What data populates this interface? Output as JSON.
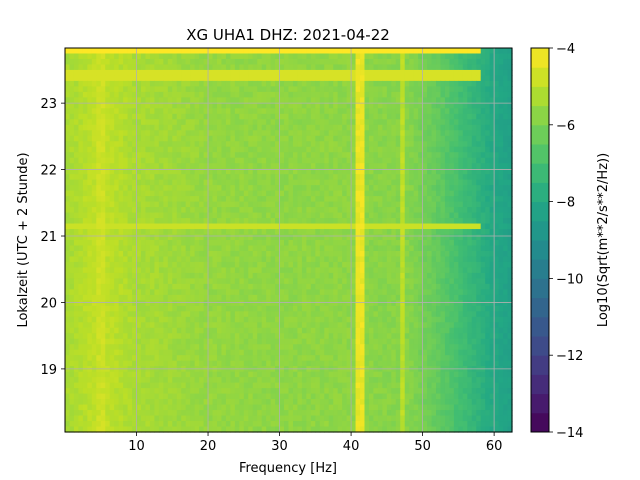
{
  "chart_data": {
    "type": "heatmap",
    "title": "XG UHA1  DHZ: 2021-04-22",
    "xlabel": "Frequency [Hz]",
    "ylabel": "Lokalzeit (UTC + 2 Stunde)",
    "xlim": [
      0,
      62.5
    ],
    "ylim": [
      23.83,
      18.05
    ],
    "x_ticks": [
      10,
      20,
      30,
      40,
      50,
      60
    ],
    "y_ticks": [
      19,
      20,
      21,
      22,
      23
    ],
    "x_ticklabels": [
      "10",
      "20",
      "30",
      "40",
      "50",
      "60"
    ],
    "y_ticklabels": [
      "19",
      "20",
      "21",
      "22",
      "23"
    ],
    "grid": true,
    "colormap": "viridis",
    "colorbar": {
      "label": "Log10(Sqrt(m**2/s**2/Hz))",
      "range": [
        -14,
        -4
      ],
      "ticks": [
        -4,
        -6,
        -8,
        -10,
        -12,
        -14
      ],
      "ticklabels": [
        "−4",
        "−6",
        "−8",
        "−10",
        "−12",
        "−14"
      ]
    },
    "spectral_features": [
      {
        "frequency_hz": 41.2,
        "level": -4.3
      },
      {
        "frequency_hz": 47.2,
        "level": -5.0
      },
      {
        "frequency_hz": 5.0,
        "level": -4.8
      }
    ],
    "time_bands": [
      {
        "time": 23.83,
        "level": -4.0
      },
      {
        "time": 23.4,
        "level": -4.6
      },
      {
        "time": 21.15,
        "level": -4.8
      }
    ],
    "spectrum_profile": {
      "frequency_hz": [
        0.5,
        5,
        10,
        20,
        30,
        40,
        45,
        48,
        52,
        55,
        58,
        60,
        62.5
      ],
      "level": [
        -5.3,
        -4.9,
        -5.3,
        -5.6,
        -5.7,
        -5.7,
        -5.8,
        -5.8,
        -6.4,
        -7.0,
        -7.6,
        -8.0,
        -8.3
      ]
    }
  }
}
